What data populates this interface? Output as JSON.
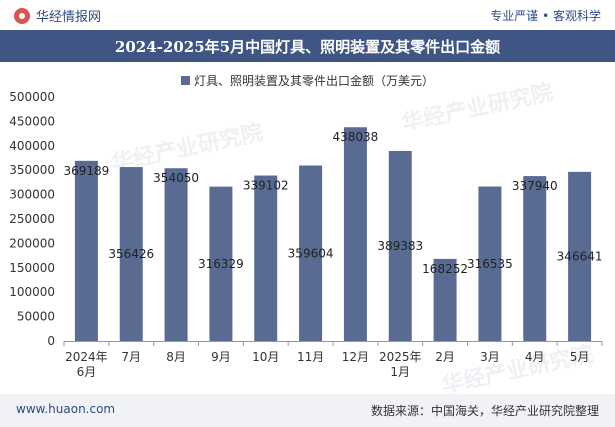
{
  "brand": {
    "name": "华经情报网",
    "slogan": "专业严谨 • 客观科学"
  },
  "chart_data": {
    "type": "bar",
    "title": "2024-2025年5月中国灯具、照明装置及其零件出口金额",
    "series": [
      {
        "name": "灯具、照明装置及其零件出口金额（万美元）",
        "values": [
          369189,
          356426,
          354050,
          316329,
          339102,
          359604,
          438038,
          389383,
          168252,
          316535,
          337940,
          346641
        ]
      }
    ],
    "categories": [
      [
        "2024年",
        "6月"
      ],
      [
        "7月"
      ],
      [
        "8月"
      ],
      [
        "9月"
      ],
      [
        "10月"
      ],
      [
        "11月"
      ],
      [
        "12月"
      ],
      [
        "2025年",
        "1月"
      ],
      [
        "2月"
      ],
      [
        "3月"
      ],
      [
        "4月"
      ],
      [
        "5月"
      ]
    ],
    "value_labels": [
      "369189",
      "356426",
      "354050",
      "316329",
      "339102",
      "359604",
      "438038",
      "389383",
      "168252",
      "316535",
      "337940",
      "346641"
    ],
    "label_position": [
      "top",
      "inside",
      "top",
      "inside",
      "top",
      "inside",
      "top",
      "inside",
      "top",
      "inside",
      "top",
      "inside"
    ],
    "yticks": [
      "0",
      "50000",
      "100000",
      "150000",
      "200000",
      "250000",
      "300000",
      "350000",
      "400000",
      "450000",
      "500000"
    ],
    "ylim": [
      0,
      500000
    ],
    "grid": false,
    "legend": "top-center",
    "bar_color": "#5a6b93"
  },
  "footer": {
    "url": "www.huaon.com",
    "source": "数据来源：中国海关，华经产业研究院整理"
  },
  "watermark": "华经产业研究院"
}
